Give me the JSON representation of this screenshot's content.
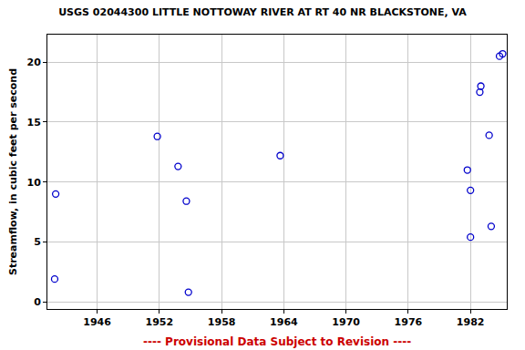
{
  "chart_data": {
    "type": "scatter",
    "title": "USGS 02044300 LITTLE NOTTOWAY RIVER AT RT 40 NR BLACKSTONE, VA",
    "ylabel": "Streamflow, in cubic feet per second",
    "annotations": [
      "---- Provisional Data Subject to Revision ----"
    ],
    "x": [
      1942.0,
      1941.9,
      1951.8,
      1953.8,
      1954.6,
      1954.8,
      1963.65,
      1981.7,
      1982.0,
      1982.0,
      1982.9,
      1983.0,
      1983.8,
      1984.0,
      1984.8,
      1985.1
    ],
    "values": [
      9.0,
      1.9,
      13.8,
      11.3,
      8.4,
      0.8,
      12.2,
      11.0,
      9.3,
      5.4,
      17.5,
      18.0,
      13.9,
      6.3,
      20.5,
      20.7
    ],
    "color": "#0000cc",
    "marker": "circle-open",
    "xlim": [
      1941.2,
      1985.5
    ],
    "xticks": [
      1946,
      1952,
      1958,
      1964,
      1970,
      1976,
      1982
    ],
    "ylim": [
      -0.6,
      22.3
    ],
    "yticks": [
      0,
      5,
      10,
      15,
      20
    ],
    "grid": true
  }
}
